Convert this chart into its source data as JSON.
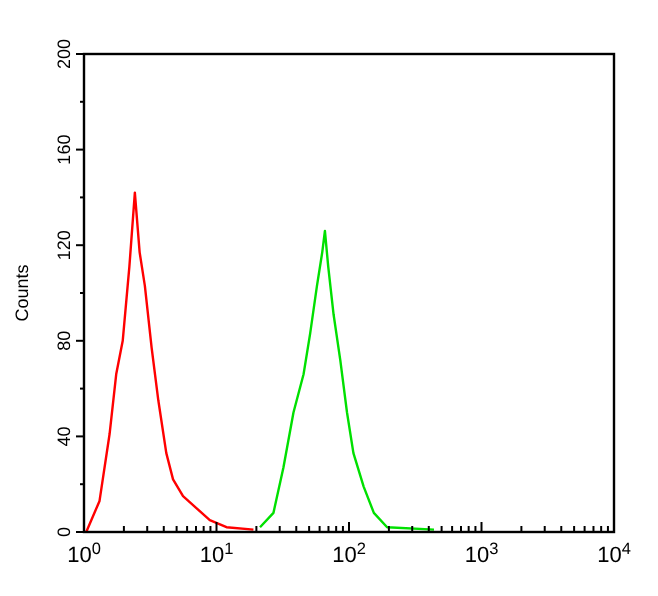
{
  "chart_data": {
    "type": "line",
    "ylabel": "Counts",
    "log": "x",
    "grid": false,
    "marker": "none",
    "line_style": "solid",
    "xlim": [
      1,
      10000
    ],
    "ylim": [
      0,
      200
    ],
    "xticks": [
      {
        "value": 1,
        "label": "10$^{0}$"
      },
      {
        "value": 2,
        "label": null
      },
      {
        "value": 3,
        "label": null
      },
      {
        "value": 4,
        "label": null
      },
      {
        "value": 5,
        "label": null
      },
      {
        "value": 6,
        "label": null
      },
      {
        "value": 7,
        "label": null
      },
      {
        "value": 8,
        "label": null
      },
      {
        "value": 9,
        "label": null
      },
      {
        "value": 10,
        "label": "10$^{1}$"
      },
      {
        "value": 20,
        "label": null
      },
      {
        "value": 30,
        "label": null
      },
      {
        "value": 40,
        "label": null
      },
      {
        "value": 50,
        "label": null
      },
      {
        "value": 60,
        "label": null
      },
      {
        "value": 70,
        "label": null
      },
      {
        "value": 80,
        "label": null
      },
      {
        "value": 90,
        "label": null
      },
      {
        "value": 100,
        "label": "10$^{2}$"
      },
      {
        "value": 200,
        "label": null
      },
      {
        "value": 300,
        "label": null
      },
      {
        "value": 400,
        "label": null
      },
      {
        "value": 500,
        "label": null
      },
      {
        "value": 600,
        "label": null
      },
      {
        "value": 700,
        "label": null
      },
      {
        "value": 800,
        "label": null
      },
      {
        "value": 900,
        "label": null
      },
      {
        "value": 1000,
        "label": "10$^{3}$"
      },
      {
        "value": 2000,
        "label": null
      },
      {
        "value": 3000,
        "label": null
      },
      {
        "value": 4000,
        "label": null
      },
      {
        "value": 5000,
        "label": null
      },
      {
        "value": 6000,
        "label": null
      },
      {
        "value": 7000,
        "label": null
      },
      {
        "value": 8000,
        "label": null
      },
      {
        "value": 9000,
        "label": null
      },
      {
        "value": 10000,
        "label": "10$^{4}$"
      }
    ],
    "yticks": [
      0,
      {
        "value": 20,
        "label": null
      },
      40,
      {
        "value": 60,
        "label": null
      },
      80,
      {
        "value": 100,
        "label": null
      },
      120,
      {
        "value": 140,
        "label": null
      },
      160,
      {
        "value": 180,
        "label": null
      },
      200
    ],
    "series": [
      {
        "color": "#ff0000",
        "x": [
          1.04,
          1.31,
          1.56,
          1.75,
          1.96,
          2.2,
          2.42,
          2.63,
          2.88,
          3.24,
          3.64,
          4.18,
          4.7,
          5.59,
          7.05,
          8.9,
          11.9,
          19
        ],
        "values": [
          0,
          13,
          41,
          66,
          80,
          111,
          142,
          117,
          103,
          77,
          55,
          33,
          22,
          15,
          10,
          5,
          2,
          1
        ]
      },
      {
        "color": "#00e000",
        "x": [
          21.3,
          26.9,
          32,
          38.1,
          45.4,
          50.9,
          57.3,
          62.8,
          65.8,
          69.7,
          76.5,
          85.9,
          96.6,
          108,
          129,
          154,
          194,
          438
        ],
        "values": [
          2,
          8,
          27,
          50,
          66,
          83,
          103,
          117,
          126,
          111,
          91,
          72,
          50,
          33,
          19,
          8,
          2,
          1
        ]
      }
    ]
  }
}
